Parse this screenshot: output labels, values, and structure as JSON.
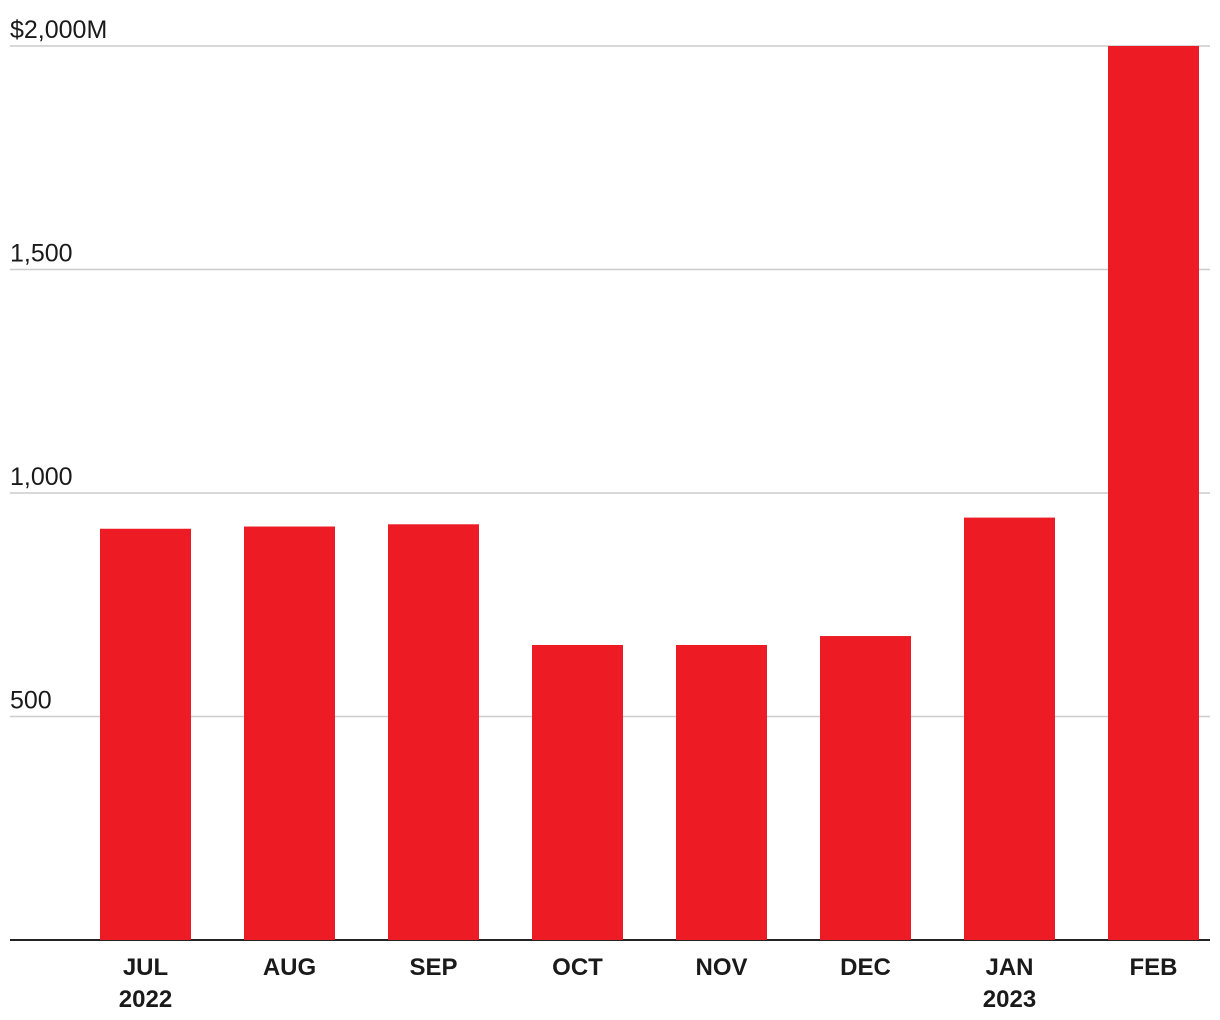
{
  "chart_data": {
    "type": "bar",
    "title": "",
    "xlabel": "",
    "ylabel": "",
    "categories": [
      "JUL",
      "AUG",
      "SEP",
      "OCT",
      "NOV",
      "DEC",
      "JAN",
      "FEB"
    ],
    "category_sublabels": [
      "2022",
      "",
      "",
      "",
      "",
      "",
      "2023",
      ""
    ],
    "values": [
      920,
      925,
      930,
      660,
      660,
      680,
      945,
      2000
    ],
    "ylim": [
      0,
      2000
    ],
    "yticks": [
      500,
      1000,
      1500,
      2000
    ],
    "ytick_labels": [
      "500",
      "1,000",
      "1,500",
      "$2,000M"
    ],
    "bar_color": "#ed1c24",
    "grid": true,
    "legend": "none"
  }
}
